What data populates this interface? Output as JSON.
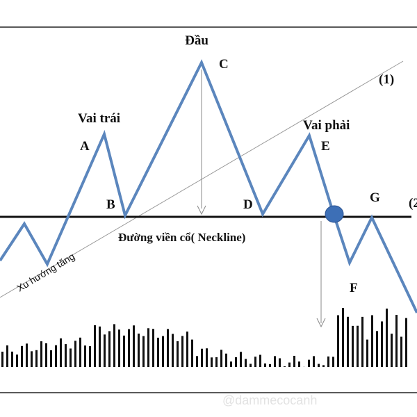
{
  "labels": {
    "head": "Đầu",
    "c": "C",
    "line1": "(1)",
    "left_shoulder": "Vai trái",
    "a": "A",
    "right_shoulder": "Vai phải",
    "e": "E",
    "b": "B",
    "d": "D",
    "g": "G",
    "line2": "(2",
    "neckline": "Đường viền cổ( Neckline)",
    "uptrend": "Xu hướng tăng",
    "f": "F",
    "watermark": "@dammecocanh"
  }
}
